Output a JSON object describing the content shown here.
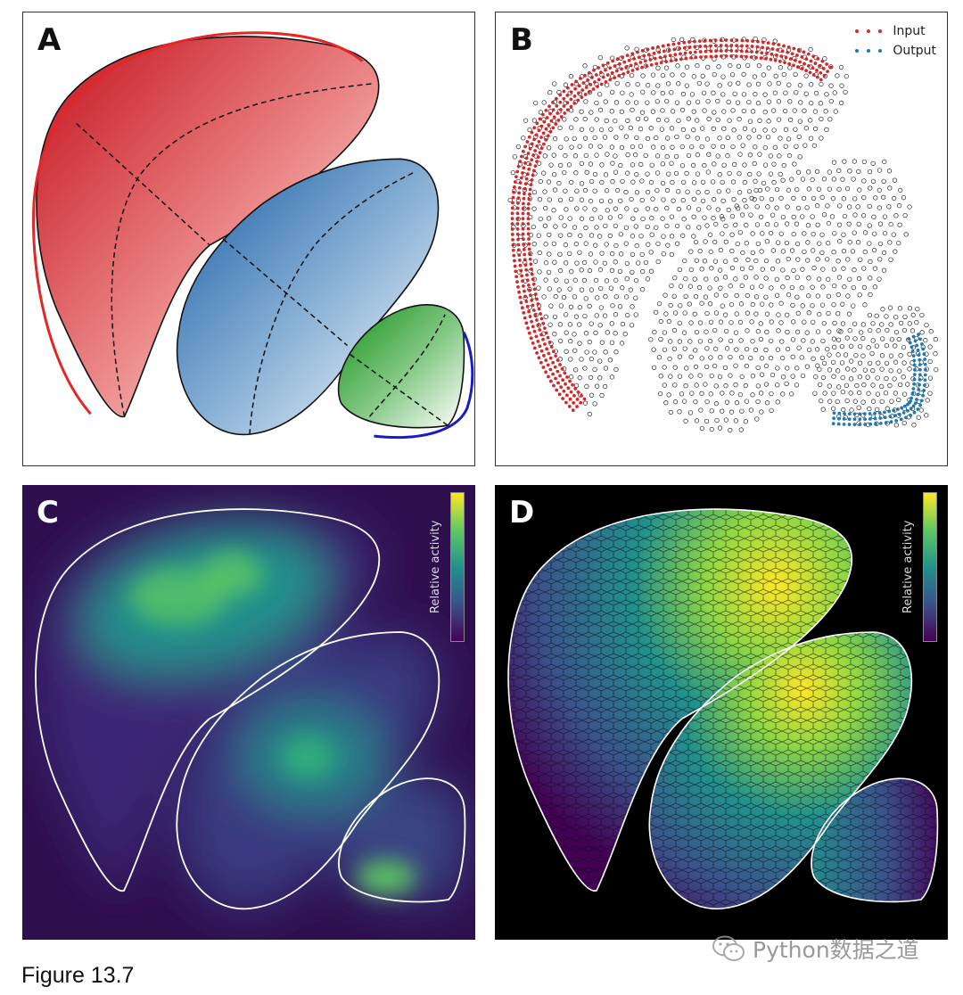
{
  "panels": {
    "a": {
      "label": "A",
      "colors": {
        "red": "#d1161d",
        "blue": "#1b5fa6",
        "green": "#169418",
        "arc_red": "#e32626",
        "arc_blue": "#1a1ac8"
      }
    },
    "b": {
      "label": "B",
      "legend": [
        {
          "label": "Input",
          "color": "#d62728"
        },
        {
          "label": "Output",
          "color": "#1f77b4"
        }
      ]
    },
    "c": {
      "label": "C",
      "colorbar_label": "Relative activity"
    },
    "d": {
      "label": "D",
      "colorbar_label": "Relative activity"
    }
  },
  "colormap": [
    "#440154",
    "#3b528b",
    "#21918c",
    "#5ec962",
    "#fde725"
  ],
  "caption": "Figure 13.7",
  "watermark": "Python数据之道"
}
